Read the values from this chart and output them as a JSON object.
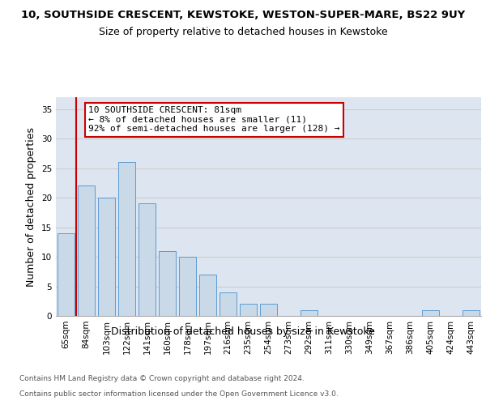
{
  "title1": "10, SOUTHSIDE CRESCENT, KEWSTOKE, WESTON-SUPER-MARE, BS22 9UY",
  "title2": "Size of property relative to detached houses in Kewstoke",
  "xlabel": "Distribution of detached houses by size in Kewstoke",
  "ylabel": "Number of detached properties",
  "categories": [
    "65sqm",
    "84sqm",
    "103sqm",
    "122sqm",
    "141sqm",
    "160sqm",
    "178sqm",
    "197sqm",
    "216sqm",
    "235sqm",
    "254sqm",
    "273sqm",
    "292sqm",
    "311sqm",
    "330sqm",
    "349sqm",
    "367sqm",
    "386sqm",
    "405sqm",
    "424sqm",
    "443sqm"
  ],
  "values": [
    14,
    22,
    20,
    26,
    19,
    11,
    10,
    7,
    4,
    2,
    2,
    0,
    1,
    0,
    0,
    0,
    0,
    0,
    1,
    0,
    1
  ],
  "bar_color": "#c9d9e8",
  "bar_edge_color": "#5b9bd5",
  "vline_color": "#cc0000",
  "annotation_text": "10 SOUTHSIDE CRESCENT: 81sqm\n← 8% of detached houses are smaller (11)\n92% of semi-detached houses are larger (128) →",
  "annotation_box_color": "#ffffff",
  "annotation_box_edge": "#cc0000",
  "ylim": [
    0,
    37
  ],
  "yticks": [
    0,
    5,
    10,
    15,
    20,
    25,
    30,
    35
  ],
  "grid_color": "#cccccc",
  "bg_color": "#dde6f0",
  "footer1": "Contains HM Land Registry data © Crown copyright and database right 2024.",
  "footer2": "Contains public sector information licensed under the Open Government Licence v3.0.",
  "title1_fontsize": 9.5,
  "title2_fontsize": 9,
  "tick_fontsize": 7.5,
  "ylabel_fontsize": 9,
  "xlabel_fontsize": 9,
  "annotation_fontsize": 8,
  "footer_fontsize": 6.5
}
